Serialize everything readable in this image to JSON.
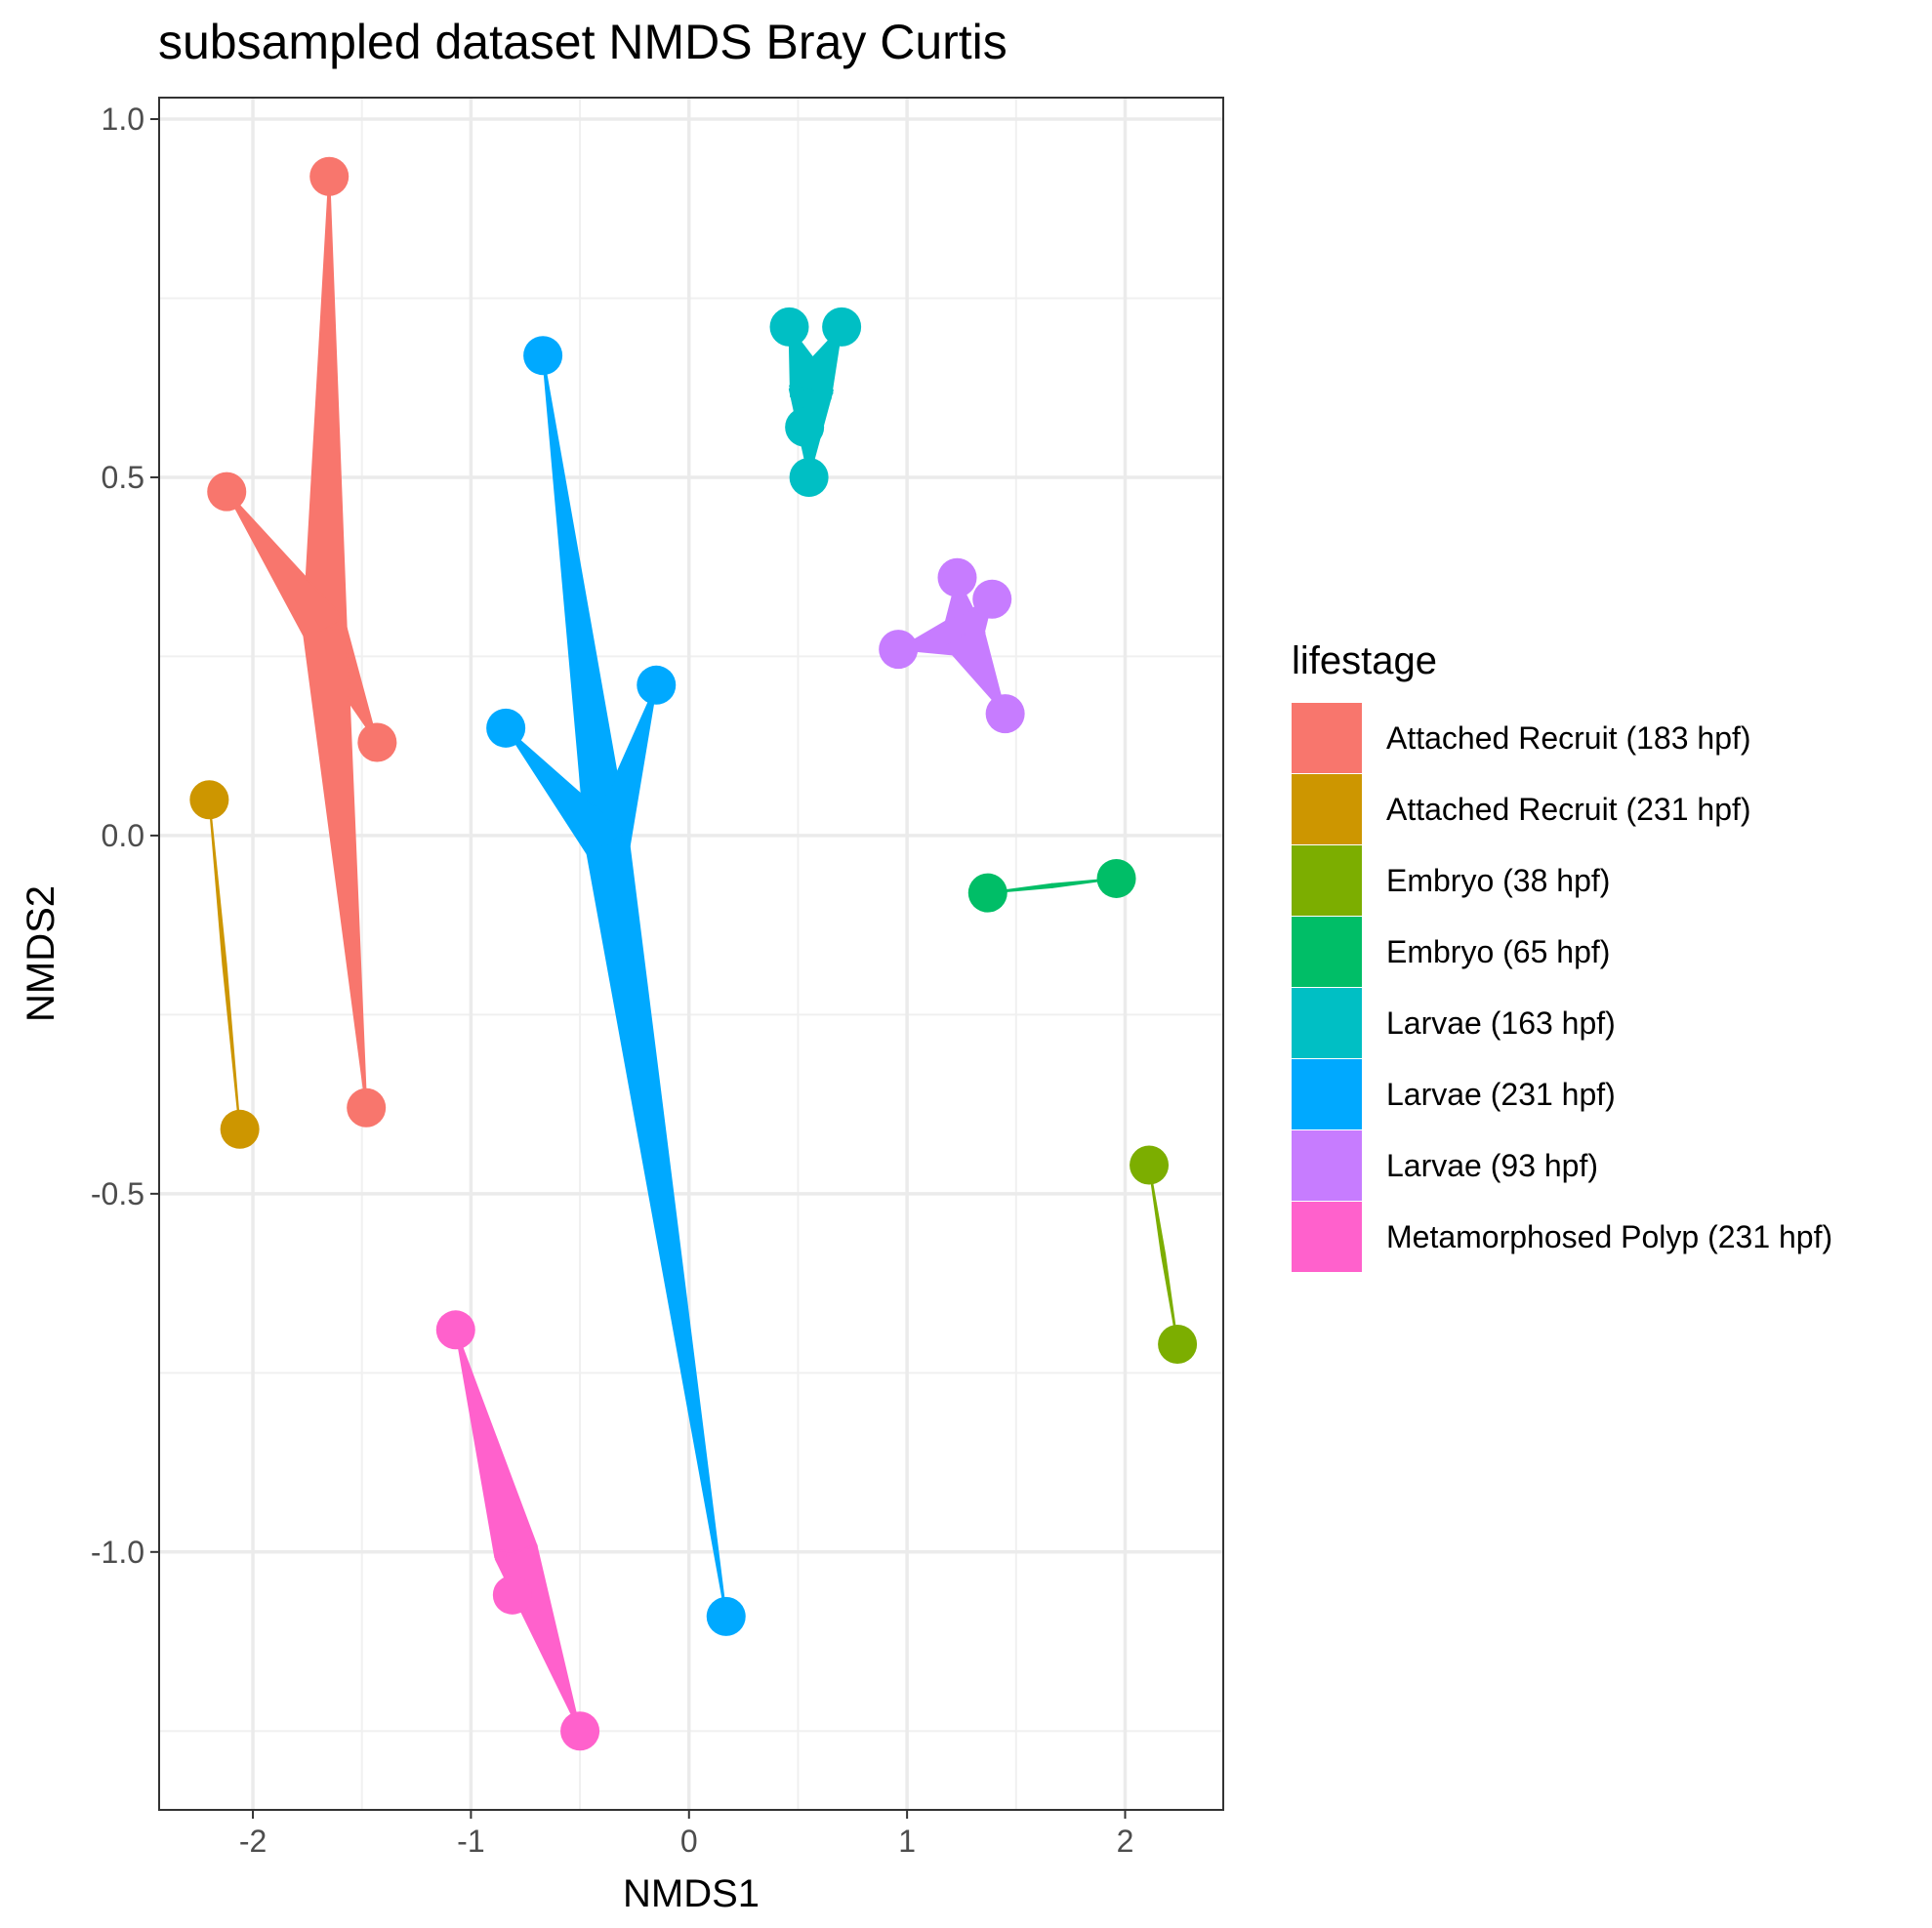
{
  "chart_data": {
    "type": "scatter",
    "title": "subsampled dataset NMDS Bray Curtis",
    "xlabel": "NMDS1",
    "ylabel": "NMDS2",
    "xlim": [
      -2.43,
      2.45
    ],
    "ylim": [
      -1.36,
      1.03
    ],
    "x_ticks": [
      -2,
      -1,
      0,
      1,
      2
    ],
    "x_tick_labels": [
      "-2",
      "-1",
      "0",
      "1",
      "2"
    ],
    "y_ticks": [
      -1.0,
      -0.5,
      0.0,
      0.5,
      1.0
    ],
    "y_tick_labels": [
      "-1.0",
      "-0.5",
      "0.0",
      "0.5",
      "1.0"
    ],
    "grid": true,
    "legend": {
      "title": "lifestage",
      "placement": "right"
    },
    "series": [
      {
        "name": "Attached Recruit (183 hpf)",
        "color": "#F8766D",
        "points": [
          [
            -1.65,
            0.92
          ],
          [
            -2.12,
            0.48
          ],
          [
            -1.43,
            0.13
          ],
          [
            -1.48,
            -0.38
          ]
        ]
      },
      {
        "name": "Attached Recruit (231 hpf)",
        "color": "#CD9600",
        "points": [
          [
            -2.2,
            0.05
          ],
          [
            -2.06,
            -0.41
          ]
        ]
      },
      {
        "name": "Embryo (38 hpf)",
        "color": "#7CAE00",
        "points": [
          [
            2.11,
            -0.46
          ],
          [
            2.24,
            -0.71
          ]
        ]
      },
      {
        "name": "Embryo (65 hpf)",
        "color": "#00BE67",
        "points": [
          [
            1.37,
            -0.08
          ],
          [
            1.96,
            -0.06
          ]
        ]
      },
      {
        "name": "Larvae (163 hpf)",
        "color": "#00BFC4",
        "points": [
          [
            0.46,
            0.71
          ],
          [
            0.7,
            0.71
          ],
          [
            0.53,
            0.57
          ],
          [
            0.55,
            0.5
          ]
        ]
      },
      {
        "name": "Larvae (231 hpf)",
        "color": "#00A9FF",
        "points": [
          [
            -0.67,
            0.67
          ],
          [
            -0.15,
            0.21
          ],
          [
            -0.84,
            0.15
          ],
          [
            0.17,
            -1.09
          ]
        ]
      },
      {
        "name": "Larvae (93 hpf)",
        "color": "#C77CFF",
        "points": [
          [
            1.23,
            0.36
          ],
          [
            1.39,
            0.33
          ],
          [
            0.96,
            0.26
          ],
          [
            1.45,
            0.17
          ]
        ]
      },
      {
        "name": "Metamorphosed Polyp (231 hpf)",
        "color": "#FF61CC",
        "points": [
          [
            -1.07,
            -0.69
          ],
          [
            -0.81,
            -1.06
          ],
          [
            -0.5,
            -1.25
          ]
        ]
      }
    ]
  }
}
